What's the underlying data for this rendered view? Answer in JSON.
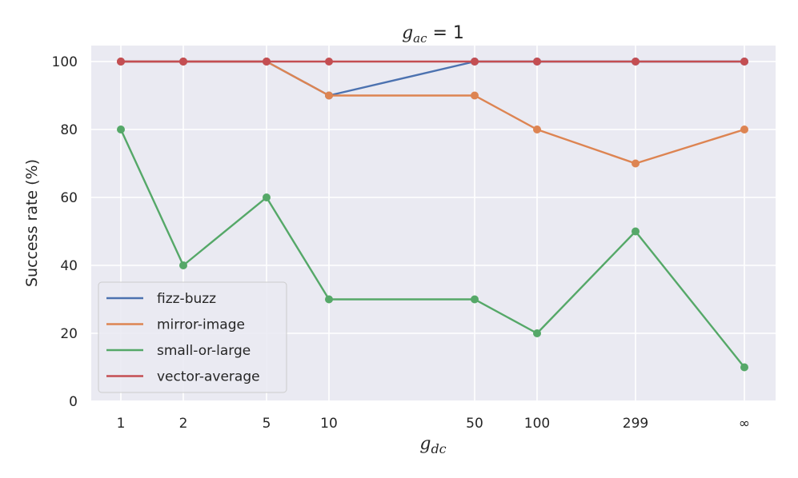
{
  "chart_data": {
    "type": "line",
    "title": {
      "main": "g",
      "sub": "ac",
      "rest": " = 1"
    },
    "xlabel": {
      "main": "g",
      "sub": "dc"
    },
    "ylabel": "Success rate (%)",
    "categories": [
      "1",
      "2",
      "5",
      "10",
      "50",
      "100",
      "299",
      "∞"
    ],
    "ylim": [
      0,
      100
    ],
    "yticks": [
      0,
      20,
      40,
      60,
      80,
      100
    ],
    "grid": true,
    "legend_position": "lower-left",
    "series": [
      {
        "name": "fizz-buzz",
        "color": "#4c72b0",
        "values": [
          100,
          100,
          100,
          90,
          100,
          100,
          100,
          100
        ]
      },
      {
        "name": "mirror-image",
        "color": "#dd8452",
        "values": [
          100,
          100,
          100,
          90,
          90,
          80,
          70,
          80
        ]
      },
      {
        "name": "small-or-large",
        "color": "#55a868",
        "values": [
          80,
          40,
          60,
          30,
          30,
          20,
          50,
          10
        ]
      },
      {
        "name": "vector-average",
        "color": "#c44e52",
        "values": [
          100,
          100,
          100,
          100,
          100,
          100,
          100,
          100
        ]
      }
    ]
  }
}
